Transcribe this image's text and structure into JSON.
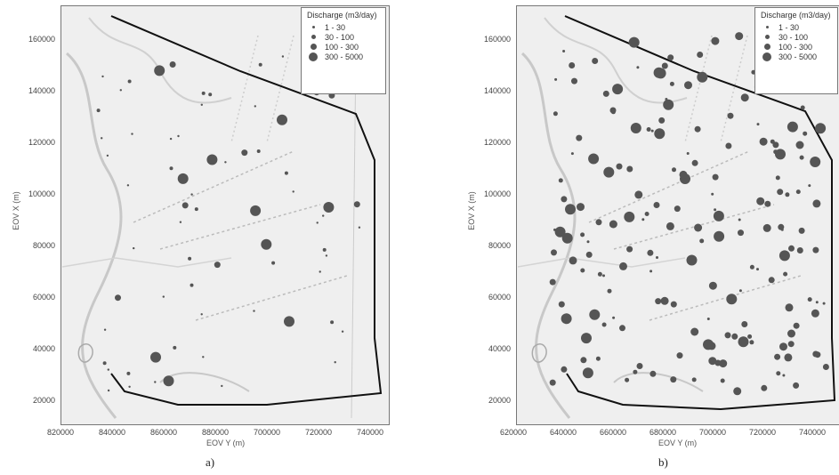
{
  "maps": [
    {
      "id": "a",
      "caption": "a)",
      "x_axis_label": "EOV Y (m)",
      "y_axis_label": "EOV X (m)",
      "x_ticks": [
        "820000",
        "840000",
        "860000",
        "880000",
        "700000",
        "720000",
        "740000"
      ],
      "y_ticks": [
        "160000",
        "140000",
        "120000",
        "100000",
        "80000",
        "60000",
        "40000",
        "20000"
      ],
      "legend_title": "Discharge (m3/day)",
      "legend_items": [
        "1 - 30",
        "30 - 100",
        "100 - 300",
        "300 - 5000"
      ]
    },
    {
      "id": "b",
      "caption": "b)",
      "x_axis_label": "EOV Y (m)",
      "y_axis_label": "EOV X (m)",
      "x_ticks": [
        "620000",
        "640000",
        "660000",
        "680000",
        "700000",
        "720000",
        "740000"
      ],
      "y_ticks": [
        "160000",
        "140000",
        "120000",
        "100000",
        "80000",
        "60000",
        "40000",
        "20000"
      ],
      "legend_title": "Discharge (m3/day)",
      "legend_items": [
        "1 - 30",
        "30 - 100",
        "100 - 300",
        "300 - 5000"
      ]
    }
  ],
  "colors": {
    "boundary": "#111111",
    "wells": "#555555",
    "map_base": "#efefef",
    "roads": "#c8c8c8"
  }
}
